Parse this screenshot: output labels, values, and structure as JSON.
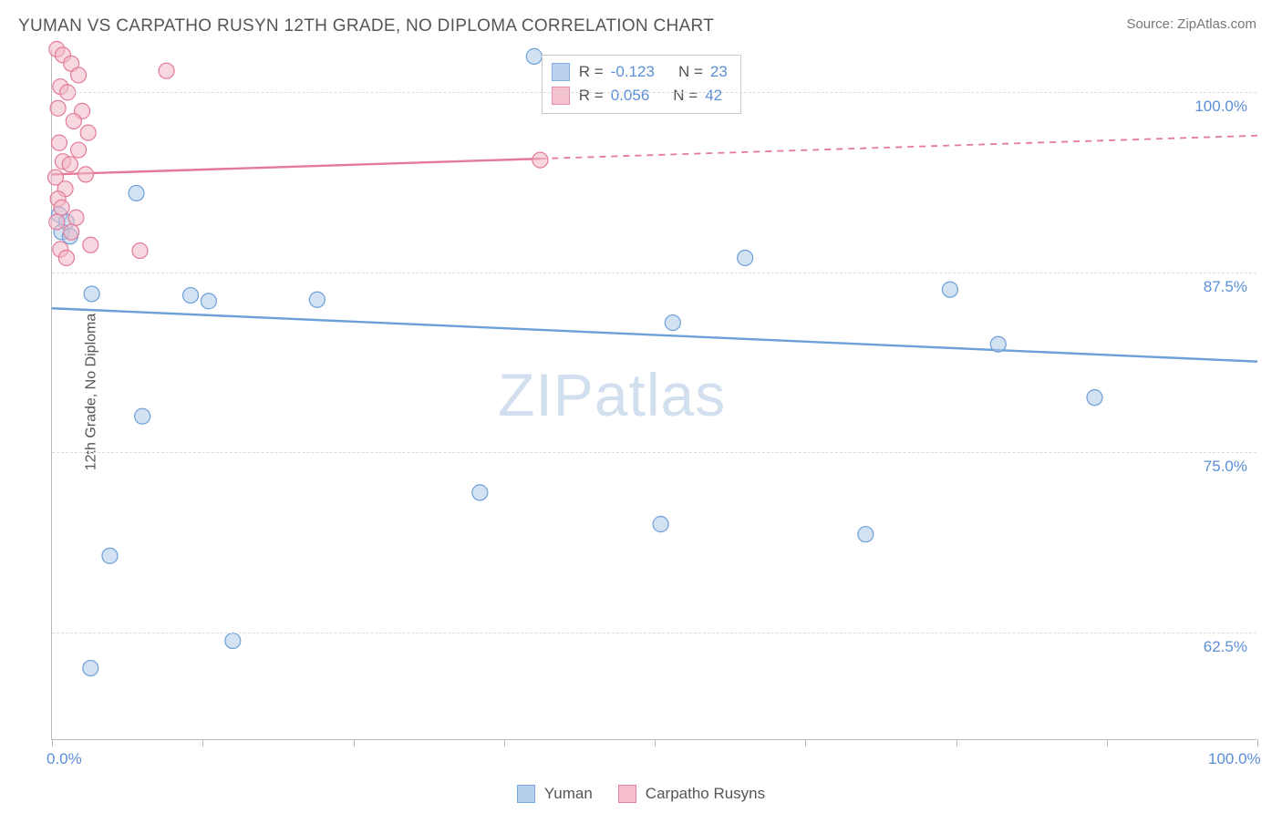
{
  "title": "YUMAN VS CARPATHO RUSYN 12TH GRADE, NO DIPLOMA CORRELATION CHART",
  "source": "Source: ZipAtlas.com",
  "ylabel": "12th Grade, No Diploma",
  "watermark_prefix": "ZIP",
  "watermark_suffix": "atlas",
  "chart": {
    "type": "scatter-with-trend",
    "plot_background": "#ffffff",
    "grid_color": "#dcdcdc",
    "axis_color": "#b8b8b8",
    "xlim": [
      0,
      100
    ],
    "ylim": [
      55,
      103
    ],
    "x_ticks": [
      0,
      12.5,
      25,
      37.5,
      50,
      62.5,
      75,
      87.5,
      100
    ],
    "x_tick_labels": {
      "0": "0.0%",
      "100": "100.0%"
    },
    "y_gridlines": [
      62.5,
      75,
      87.5,
      100
    ],
    "y_tick_labels": {
      "62.5": "62.5%",
      "75": "75.0%",
      "87.5": "87.5%",
      "100": "100.0%"
    },
    "tick_label_color": "#5b8fd6",
    "tick_label_fontsize": 17,
    "marker_radius": 8.5,
    "marker_stroke_width": 1.2,
    "trend_line_width": 2.4,
    "series": [
      {
        "name": "Yuman",
        "fill_color": "#aecaea",
        "stroke_color": "#6d9fd8",
        "fill_opacity": 0.55,
        "R": "-0.123",
        "N": "23",
        "trend": {
          "x1": 0,
          "y1": 85.0,
          "x2": 100,
          "y2": 81.3,
          "dash_from_x": null
        },
        "points": [
          {
            "x": 0.6,
            "y": 91.5
          },
          {
            "x": 1.2,
            "y": 91.0
          },
          {
            "x": 0.8,
            "y": 90.3
          },
          {
            "x": 1.5,
            "y": 90.0
          },
          {
            "x": 7.0,
            "y": 93.0
          },
          {
            "x": 3.3,
            "y": 86.0
          },
          {
            "x": 11.5,
            "y": 85.9
          },
          {
            "x": 13.0,
            "y": 85.5
          },
          {
            "x": 22.0,
            "y": 85.6
          },
          {
            "x": 40.0,
            "y": 102.5
          },
          {
            "x": 51.5,
            "y": 84.0
          },
          {
            "x": 57.5,
            "y": 88.5
          },
          {
            "x": 74.5,
            "y": 86.3
          },
          {
            "x": 78.5,
            "y": 82.5
          },
          {
            "x": 86.5,
            "y": 78.8
          },
          {
            "x": 67.5,
            "y": 69.3
          },
          {
            "x": 35.5,
            "y": 72.2
          },
          {
            "x": 50.5,
            "y": 70.0
          },
          {
            "x": 7.5,
            "y": 77.5
          },
          {
            "x": 4.8,
            "y": 67.8
          },
          {
            "x": 15.0,
            "y": 61.9
          },
          {
            "x": 3.2,
            "y": 60.0
          }
        ]
      },
      {
        "name": "Carpatho Rusyns",
        "fill_color": "#f3b8c7",
        "stroke_color": "#e37a98",
        "fill_opacity": 0.55,
        "R": "0.056",
        "N": "42",
        "trend": {
          "x1": 0,
          "y1": 94.3,
          "x2": 100,
          "y2": 97.0,
          "dash_from_x": 40.5
        },
        "points": [
          {
            "x": 0.4,
            "y": 103.0
          },
          {
            "x": 0.9,
            "y": 102.6
          },
          {
            "x": 1.6,
            "y": 102.0
          },
          {
            "x": 2.2,
            "y": 101.2
          },
          {
            "x": 0.7,
            "y": 100.4
          },
          {
            "x": 1.3,
            "y": 100.0
          },
          {
            "x": 9.5,
            "y": 101.5
          },
          {
            "x": 2.5,
            "y": 98.7
          },
          {
            "x": 0.5,
            "y": 98.9
          },
          {
            "x": 1.8,
            "y": 98.0
          },
          {
            "x": 3.0,
            "y": 97.2
          },
          {
            "x": 0.6,
            "y": 96.5
          },
          {
            "x": 2.2,
            "y": 96.0
          },
          {
            "x": 0.9,
            "y": 95.2
          },
          {
            "x": 1.5,
            "y": 95.0
          },
          {
            "x": 0.3,
            "y": 94.1
          },
          {
            "x": 2.8,
            "y": 94.3
          },
          {
            "x": 1.1,
            "y": 93.3
          },
          {
            "x": 0.5,
            "y": 92.6
          },
          {
            "x": 0.8,
            "y": 92.0
          },
          {
            "x": 2.0,
            "y": 91.3
          },
          {
            "x": 0.4,
            "y": 91.0
          },
          {
            "x": 1.6,
            "y": 90.3
          },
          {
            "x": 3.2,
            "y": 89.4
          },
          {
            "x": 0.7,
            "y": 89.1
          },
          {
            "x": 1.2,
            "y": 88.5
          },
          {
            "x": 7.3,
            "y": 89.0
          },
          {
            "x": 40.5,
            "y": 95.3
          }
        ]
      }
    ]
  },
  "legend_stats": {
    "R_label": "R =",
    "N_label": "N ="
  },
  "bottom_legend": {
    "items": [
      "Yuman",
      "Carpatho Rusyns"
    ]
  }
}
